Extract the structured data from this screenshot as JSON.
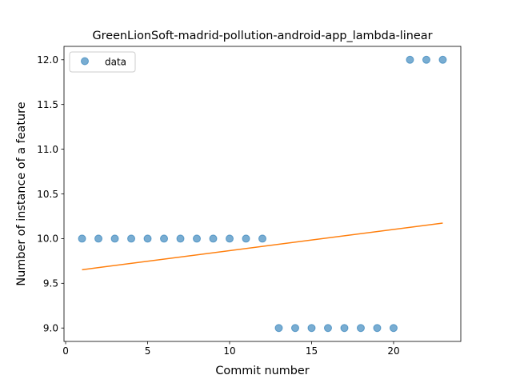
{
  "chart_data": {
    "type": "scatter",
    "title": "GreenLionSoft-madrid-pollution-android-app_lambda-linear",
    "xlabel": "Commit number",
    "ylabel": "Number of instance of a feature",
    "xlim": [
      -0.1,
      24.1
    ],
    "ylim": [
      8.85,
      12.15
    ],
    "x_ticks": [
      0,
      5,
      10,
      15,
      20
    ],
    "x_tick_labels": [
      "0",
      "5",
      "10",
      "15",
      "20"
    ],
    "y_ticks": [
      9.0,
      9.5,
      10.0,
      10.5,
      11.0,
      11.5,
      12.0
    ],
    "y_tick_labels": [
      "9.0",
      "9.5",
      "10.0",
      "10.5",
      "11.0",
      "11.5",
      "12.0"
    ],
    "grid": false,
    "legend_position": "upper-left",
    "series": [
      {
        "name": "data",
        "kind": "scatter",
        "color": "#1f77b4",
        "x": [
          1,
          2,
          3,
          4,
          5,
          6,
          7,
          8,
          9,
          10,
          11,
          12,
          13,
          14,
          15,
          16,
          17,
          18,
          19,
          20,
          21,
          22,
          23
        ],
        "y": [
          10,
          10,
          10,
          10,
          10,
          10,
          10,
          10,
          10,
          10,
          10,
          10,
          9,
          9,
          9,
          9,
          9,
          9,
          9,
          9,
          12,
          12,
          12
        ]
      },
      {
        "kind": "line",
        "color": "#ff7f0e",
        "x": [
          1,
          23
        ],
        "y": [
          9.652,
          10.174
        ]
      }
    ]
  }
}
